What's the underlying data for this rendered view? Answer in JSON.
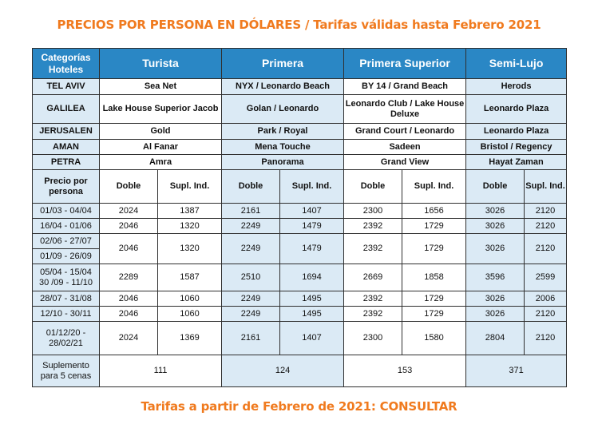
{
  "title": "PRECIOS POR PERSONA EN DÓLARES / Tarifas válidas hasta Febrero 2021",
  "footer": "Tarifas a partir de Febrero de 2021: CONSULTAR",
  "header": {
    "category_line1": "Categorías",
    "category_line2": "Hoteles",
    "turista": "Turista",
    "primera": "Primera",
    "primera_superior": "Primera Superior",
    "semi_lujo": "Semi-Lujo"
  },
  "hotels": [
    {
      "city": "TEL AVIV",
      "turista": "Sea Net",
      "primera": "NYX / Leonardo Beach",
      "primera_superior": "BY 14 / Grand Beach",
      "semi_lujo": "Herods"
    },
    {
      "city": "GALILEA",
      "turista": "Lake House Superior Jacob",
      "primera": "Golan / Leonardo",
      "primera_superior": "Leonardo Club / Lake House Deluxe",
      "semi_lujo": "Leonardo Plaza"
    },
    {
      "city": "JERUSALEN",
      "turista": "Gold",
      "primera": "Park / Royal",
      "primera_superior": "Grand Court / Leonardo",
      "semi_lujo": "Leonardo Plaza"
    },
    {
      "city": "AMAN",
      "turista": "Al Fanar",
      "primera": "Mena Touche",
      "primera_superior": "Sadeen",
      "semi_lujo": "Bristol / Regency"
    },
    {
      "city": "PETRA",
      "turista": "Amra",
      "primera": "Panorama",
      "primera_superior": "Grand View",
      "semi_lujo": "Hayat Zaman"
    }
  ],
  "price_header": {
    "label_line1": "Precio por",
    "label_line2": "persona",
    "doble": "Doble",
    "supl": "Supl. Ind."
  },
  "prices": [
    {
      "period": "01/03 - 04/04",
      "values": [
        "2024",
        "1387",
        "2161",
        "1407",
        "2300",
        "1656",
        "3026",
        "2120"
      ]
    },
    {
      "period": "16/04 - 01/06",
      "values": [
        "2046",
        "1320",
        "2249",
        "1479",
        "2392",
        "1729",
        "3026",
        "2120"
      ]
    },
    {
      "period": "02/06 - 27/07",
      "period2": "01/09 - 26/09",
      "values": [
        "2046",
        "1320",
        "2249",
        "1479",
        "2392",
        "1729",
        "3026",
        "2120"
      ]
    },
    {
      "period": "05/04 - 15/04",
      "period2": "30 /09 - 11/10",
      "values": [
        "2289",
        "1587",
        "2510",
        "1694",
        "2669",
        "1858",
        "3596",
        "2599"
      ]
    },
    {
      "period": "28/07 - 31/08",
      "values": [
        "2046",
        "1060",
        "2249",
        "1495",
        "2392",
        "1729",
        "3026",
        "2006"
      ]
    },
    {
      "period": "12/10 - 30/11",
      "values": [
        "2046",
        "1060",
        "2249",
        "1495",
        "2392",
        "1729",
        "3026",
        "2120"
      ]
    },
    {
      "period": "01/12/20 -",
      "period2": "28/02/21",
      "values": [
        "2024",
        "1369",
        "2161",
        "1407",
        "2300",
        "1580",
        "2804",
        "2120"
      ]
    }
  ],
  "suplemento": {
    "label_line1": "Suplemento",
    "label_line2": "para 5 cenas",
    "values": [
      "111",
      "124",
      "153",
      "371"
    ]
  }
}
